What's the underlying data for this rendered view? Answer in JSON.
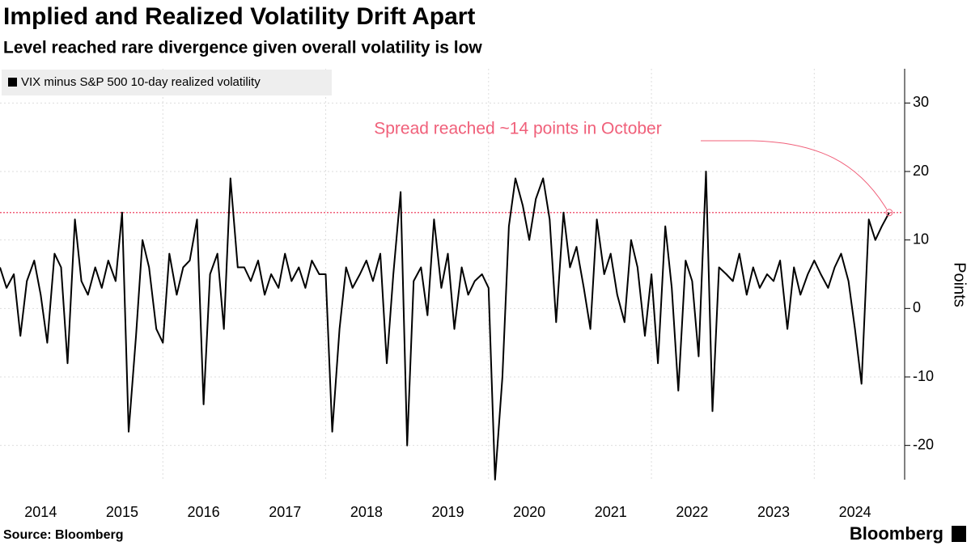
{
  "chart_data": {
    "type": "line",
    "title": "Implied and Realized Volatility Drift Apart",
    "subtitle": "Level reached rare divergence given overall volatility is low",
    "y_label": "Points",
    "source": "Source: Bloomberg",
    "brand": "Bloomberg",
    "annotation": {
      "text": "Spread reached ~14 points in October",
      "value": 14
    },
    "x": [
      2014.0,
      2014.08,
      2014.17,
      2014.25,
      2014.33,
      2014.42,
      2014.5,
      2014.58,
      2014.67,
      2014.75,
      2014.83,
      2014.92,
      2015.0,
      2015.08,
      2015.17,
      2015.25,
      2015.33,
      2015.42,
      2015.5,
      2015.58,
      2015.67,
      2015.75,
      2015.83,
      2015.92,
      2016.0,
      2016.08,
      2016.17,
      2016.25,
      2016.33,
      2016.42,
      2016.5,
      2016.58,
      2016.67,
      2016.75,
      2016.83,
      2016.92,
      2017.0,
      2017.08,
      2017.17,
      2017.25,
      2017.33,
      2017.42,
      2017.5,
      2017.58,
      2017.67,
      2017.75,
      2017.83,
      2017.92,
      2018.0,
      2018.08,
      2018.17,
      2018.25,
      2018.33,
      2018.42,
      2018.5,
      2018.58,
      2018.67,
      2018.75,
      2018.83,
      2018.92,
      2019.0,
      2019.08,
      2019.17,
      2019.25,
      2019.33,
      2019.42,
      2019.5,
      2019.58,
      2019.67,
      2019.75,
      2019.83,
      2019.92,
      2020.0,
      2020.08,
      2020.17,
      2020.25,
      2020.33,
      2020.42,
      2020.5,
      2020.58,
      2020.67,
      2020.75,
      2020.83,
      2020.92,
      2021.0,
      2021.08,
      2021.17,
      2021.25,
      2021.33,
      2021.42,
      2021.5,
      2021.58,
      2021.67,
      2021.75,
      2021.83,
      2021.92,
      2022.0,
      2022.08,
      2022.17,
      2022.25,
      2022.33,
      2022.42,
      2022.5,
      2022.58,
      2022.67,
      2022.75,
      2022.83,
      2022.92,
      2023.0,
      2023.08,
      2023.17,
      2023.25,
      2023.33,
      2023.42,
      2023.5,
      2023.58,
      2023.67,
      2023.75,
      2023.83,
      2023.92,
      2024.0,
      2024.08,
      2024.17,
      2024.25,
      2024.33,
      2024.42,
      2024.5,
      2024.58,
      2024.67,
      2024.75,
      2024.83,
      2024.92
    ],
    "series": [
      {
        "name": "VIX minus S&P 500 10-day realized volatility",
        "color": "#000000",
        "values": [
          6,
          3,
          5,
          -4,
          4,
          7,
          2,
          -5,
          8,
          6,
          -8,
          13,
          4,
          2,
          6,
          3,
          7,
          4,
          14,
          -18,
          -4,
          10,
          6,
          -3,
          -5,
          8,
          2,
          6,
          7,
          13,
          -14,
          5,
          8,
          -3,
          19,
          6,
          6,
          4,
          7,
          2,
          5,
          3,
          8,
          4,
          6,
          3,
          7,
          5,
          5,
          -18,
          -3,
          6,
          3,
          5,
          7,
          4,
          8,
          -8,
          5,
          17,
          -20,
          4,
          6,
          -1,
          13,
          3,
          8,
          -3,
          6,
          2,
          4,
          5,
          3,
          -25,
          -10,
          12,
          19,
          15,
          10,
          16,
          19,
          13,
          -2,
          14,
          6,
          9,
          3,
          -3,
          13,
          5,
          8,
          2,
          -2,
          10,
          6,
          -4,
          5,
          -8,
          12,
          3,
          -12,
          7,
          4,
          -7,
          20,
          -15,
          6,
          5,
          4,
          8,
          2,
          6,
          3,
          5,
          4,
          7,
          -3,
          6,
          2,
          5,
          7,
          5,
          3,
          6,
          8,
          4,
          -3,
          -11,
          13,
          10,
          12,
          14
        ]
      }
    ],
    "xlim": [
      2014,
      2025.08
    ],
    "xticks": [
      {
        "value": 2014.5,
        "label": "2014"
      },
      {
        "value": 2015.5,
        "label": "2015"
      },
      {
        "value": 2016.5,
        "label": "2016"
      },
      {
        "value": 2017.5,
        "label": "2017"
      },
      {
        "value": 2018.5,
        "label": "2018"
      },
      {
        "value": 2019.5,
        "label": "2019"
      },
      {
        "value": 2020.5,
        "label": "2020"
      },
      {
        "value": 2021.5,
        "label": "2021"
      },
      {
        "value": 2022.5,
        "label": "2022"
      },
      {
        "value": 2023.5,
        "label": "2023"
      },
      {
        "value": 2024.5,
        "label": "2024"
      }
    ],
    "xgrid": [
      2016,
      2018,
      2020,
      2022,
      2024
    ],
    "ylim": [
      -25,
      35
    ],
    "yticks": [
      -20,
      -10,
      0,
      10,
      20,
      30
    ],
    "grid": true,
    "legend": "top-left",
    "annotation_color": "#f0607a"
  }
}
